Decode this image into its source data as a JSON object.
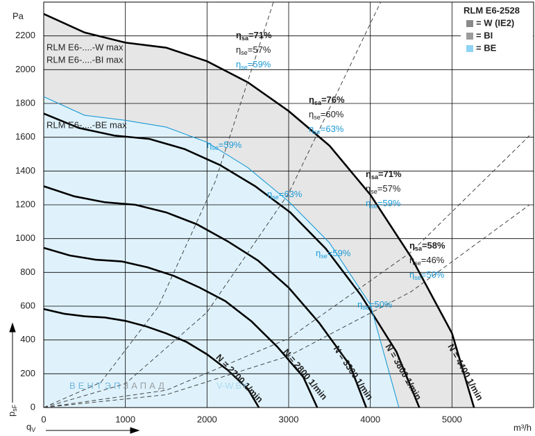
{
  "chart_data": {
    "type": "line",
    "title": "RLM E6-2528",
    "x_label": "m³/h",
    "y_unit": "Pa",
    "x_symbol": [
      "q",
      "V"
    ],
    "y_symbol": [
      "p",
      "sF"
    ],
    "xlim": [
      0,
      6000
    ],
    "ylim": [
      0,
      2400
    ],
    "xticks": [
      0,
      1000,
      2000,
      3000,
      4000,
      5000
    ],
    "yticks": [
      0,
      200,
      400,
      600,
      800,
      1000,
      1200,
      1400,
      1600,
      1800,
      2000,
      2200
    ],
    "grid": true,
    "legend": [
      {
        "name": "= W (IE2)",
        "color": "#8a8a8a"
      },
      {
        "name": "= BI",
        "color": "#9c9c9c"
      },
      {
        "name": "= BE",
        "color": "#8fd3f4"
      }
    ],
    "legend_position": "upper right",
    "series": [
      {
        "name": "N = 4400 1/min",
        "color": "#000000",
        "fill": "#e6e6e6",
        "x": [
          0,
          500,
          1000,
          1500,
          2000,
          2500,
          3000,
          3500,
          4000,
          4500,
          5000,
          5270
        ],
        "values": [
          2330,
          2220,
          2160,
          2130,
          2050,
          1925,
          1755,
          1550,
          1260,
          890,
          440,
          0
        ]
      },
      {
        "name": "N = 3800 1/min",
        "color": "#000000",
        "x": [
          0,
          430,
          865,
          1295,
          1725,
          2160,
          2590,
          3020,
          3455,
          3885,
          4320,
          4600
        ],
        "values": [
          1740,
          1655,
          1610,
          1590,
          1530,
          1435,
          1310,
          1155,
          940,
          665,
          330,
          0
        ]
      },
      {
        "name": "N = 3300 1/min",
        "color": "#000000",
        "x": [
          0,
          375,
          750,
          1125,
          1500,
          1875,
          2250,
          2625,
          3000,
          3375,
          3750,
          3950
        ],
        "values": [
          1310,
          1250,
          1215,
          1200,
          1155,
          1085,
          985,
          870,
          710,
          500,
          250,
          0
        ]
      },
      {
        "name": "N = 2800 1/min",
        "color": "#000000",
        "x": [
          0,
          320,
          635,
          955,
          1270,
          1590,
          1910,
          2225,
          2545,
          2860,
          3180,
          3350
        ],
        "values": [
          945,
          900,
          875,
          865,
          830,
          780,
          710,
          630,
          510,
          360,
          180,
          0
        ]
      },
      {
        "name": "N = 2200 1/min",
        "color": "#000000",
        "x": [
          0,
          250,
          500,
          750,
          1000,
          1250,
          1500,
          1750,
          2000,
          2250,
          2500,
          2635
        ],
        "values": [
          583,
          555,
          540,
          533,
          513,
          481,
          439,
          388,
          315,
          223,
          110,
          0
        ]
      },
      {
        "color": "#1a9ad6",
        "fill": "#dff2fb",
        "style": "thin",
        "x": [
          0,
          500,
          1000,
          1500,
          2000,
          2500,
          3000,
          3500,
          4000,
          4350
        ],
        "values": [
          1840,
          1730,
          1700,
          1660,
          1570,
          1420,
          1220,
          975,
          610,
          0
        ]
      },
      {
        "color": "#333333",
        "style": "dashed",
        "x": [
          0,
          700,
          1400,
          2100,
          2814
        ],
        "values": [
          0,
          149,
          594,
          1337,
          2400
        ]
      },
      {
        "color": "#333333",
        "style": "dashed",
        "x": [
          0,
          1000,
          2000,
          3000,
          4127
        ],
        "values": [
          0,
          141,
          564,
          1268,
          2400
        ]
      },
      {
        "color": "#333333",
        "style": "dashed",
        "x": [
          0,
          1500,
          3000,
          4500,
          5950
        ],
        "values": [
          0,
          102,
          409,
          921,
          1610
        ]
      },
      {
        "color": "#333333",
        "style": "dashed",
        "x": [
          0,
          1500,
          3000,
          4500,
          5950
        ],
        "values": [
          0,
          76,
          305,
          686,
          1200
        ]
      }
    ],
    "curve_labels": [
      {
        "text": "RLM E6-....-W max",
        "color": "#222222"
      },
      {
        "text": "RLM E6-....-BI max",
        "color": "#1a9ad6"
      },
      {
        "text": "RLM E6-....-BE max",
        "color": "#1a9ad6"
      }
    ],
    "efficiency_groups": [
      [
        [
          "η",
          "sa",
          "=71%"
        ],
        [
          "η",
          "se",
          "=57%"
        ],
        [
          "η",
          "se",
          "=59%"
        ]
      ],
      [
        [
          "η",
          "sa",
          "=76%"
        ],
        [
          "η",
          "se",
          "=60%"
        ],
        [
          "η",
          "se",
          "=63%"
        ]
      ],
      [
        [
          "η",
          "sa",
          "=71%"
        ],
        [
          "η",
          "se",
          "=57%"
        ],
        [
          "η",
          "se",
          "=59%"
        ]
      ],
      [
        [
          "η",
          "sa",
          "=58%"
        ],
        [
          "η",
          "se",
          "=46%"
        ],
        [
          "η",
          "se",
          "=50%"
        ]
      ]
    ],
    "curve_efficiency_labels": [
      [
        "η",
        "se",
        "=59%"
      ],
      [
        "η",
        "se",
        "=63%"
      ],
      [
        "η",
        "se",
        "=59%"
      ],
      [
        "η",
        "se",
        "=50%"
      ]
    ],
    "watermark": [
      "ВЕНТЭП",
      "ЗАПАД",
      "V-W.BY"
    ]
  }
}
